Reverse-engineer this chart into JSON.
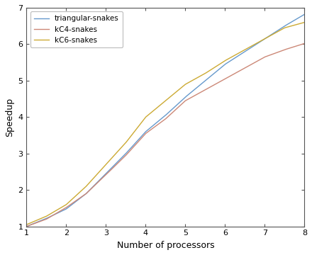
{
  "x": [
    1,
    1.5,
    2,
    2.5,
    3,
    3.5,
    4,
    4.5,
    5,
    5.5,
    6,
    6.5,
    7,
    7.5,
    8
  ],
  "triangular_snakes": [
    1.0,
    1.22,
    1.48,
    1.9,
    2.45,
    3.0,
    3.6,
    4.05,
    4.55,
    5.0,
    5.45,
    5.8,
    6.15,
    6.5,
    6.82
  ],
  "kC4_snakes": [
    1.0,
    1.2,
    1.52,
    1.9,
    2.42,
    2.95,
    3.55,
    3.95,
    4.45,
    4.75,
    5.05,
    5.35,
    5.65,
    5.85,
    6.02
  ],
  "kC6_snakes": [
    1.05,
    1.28,
    1.6,
    2.1,
    2.7,
    3.3,
    4.0,
    4.45,
    4.9,
    5.2,
    5.55,
    5.85,
    6.15,
    6.45,
    6.6
  ],
  "line_colors": {
    "triangular": "#6699cc",
    "kC4": "#cc8877",
    "kC6": "#ccaa33"
  },
  "legend_labels": [
    "triangular-snakes",
    "kC4-snakes",
    "kC6-snakes"
  ],
  "xlabel": "Number of processors",
  "ylabel": "Speedup",
  "xlim": [
    1,
    8
  ],
  "ylim": [
    1,
    7
  ],
  "xticks": [
    1,
    2,
    3,
    4,
    5,
    6,
    7,
    8
  ],
  "yticks": [
    1,
    2,
    3,
    4,
    5,
    6,
    7
  ],
  "background_color": "#ffffff"
}
